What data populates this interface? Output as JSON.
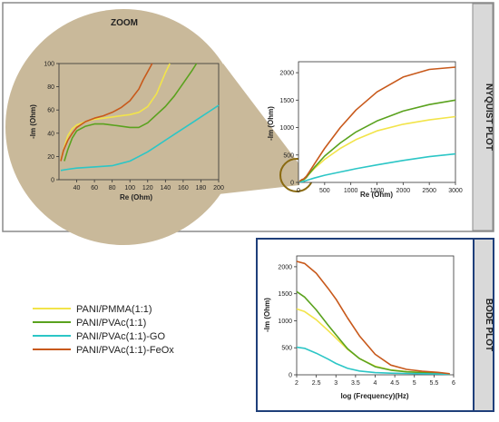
{
  "colors": {
    "yellow": "#f2e44a",
    "green": "#5aa21e",
    "cyan": "#2cc6c6",
    "orange": "#c8591b",
    "zoom_fill": "#c9b99a",
    "panel_border_top": "#8a8a8a",
    "panel_border_bottom": "#1f3f7a",
    "side_tab": "#d9d9d9"
  },
  "legend": {
    "items": [
      {
        "label": "PANI/PMMA(1:1)",
        "color": "#f2e44a"
      },
      {
        "label": "PANI/PVAc(1:1)",
        "color": "#5aa21e"
      },
      {
        "label": "PANI/PVAc(1:1)-GO",
        "color": "#2cc6c6"
      },
      {
        "label": "PANI/PVAc(1:1)-FeOx",
        "color": "#c8591b"
      }
    ]
  },
  "chart_data": [
    {
      "id": "nyquist",
      "type": "line",
      "side_label": "NYQUIST PLOT",
      "xlabel": "Re (Ohm)",
      "ylabel": "-Im (Ohm)",
      "xlim": [
        0,
        3000
      ],
      "ylim": [
        0,
        2200
      ],
      "xticks": [
        0,
        500,
        1000,
        1500,
        2000,
        2500,
        3000
      ],
      "yticks": [
        0,
        500,
        1000,
        1500,
        2000
      ],
      "series": [
        {
          "color": "#f2e44a",
          "x": [
            20,
            60,
            100,
            150,
            200,
            300,
            500,
            800,
            1100,
            1500,
            2000,
            2500,
            3000
          ],
          "y": [
            20,
            45,
            60,
            100,
            150,
            250,
            420,
            620,
            780,
            940,
            1060,
            1140,
            1200
          ]
        },
        {
          "color": "#5aa21e",
          "x": [
            20,
            60,
            100,
            150,
            200,
            300,
            500,
            800,
            1100,
            1500,
            2000,
            2500,
            3000
          ],
          "y": [
            15,
            40,
            50,
            90,
            150,
            270,
            480,
            720,
            920,
            1120,
            1300,
            1420,
            1500
          ]
        },
        {
          "color": "#2cc6c6",
          "x": [
            20,
            60,
            100,
            150,
            200,
            300,
            500,
            800,
            1100,
            1500,
            2000,
            2500,
            3000
          ],
          "y": [
            10,
            12,
            18,
            35,
            50,
            80,
            130,
            190,
            250,
            320,
            400,
            470,
            520
          ]
        },
        {
          "color": "#c8591b",
          "x": [
            20,
            60,
            100,
            150,
            200,
            300,
            500,
            800,
            1100,
            1500,
            2000,
            2500,
            3000
          ],
          "y": [
            20,
            50,
            65,
            110,
            180,
            330,
            620,
            1000,
            1320,
            1650,
            1920,
            2060,
            2100
          ]
        }
      ]
    },
    {
      "id": "zoom",
      "type": "line",
      "title": "ZOOM",
      "xlabel": "Re (Ohm)",
      "ylabel": "-Im (Ohm)",
      "xlim": [
        20,
        200
      ],
      "ylim": [
        0,
        100
      ],
      "xticks": [
        40,
        60,
        80,
        100,
        120,
        140,
        160,
        180,
        200
      ],
      "yticks": [
        0,
        20,
        40,
        60,
        80,
        100
      ],
      "series": [
        {
          "color": "#f2e44a",
          "x": [
            22,
            26,
            30,
            35,
            40,
            50,
            60,
            70,
            80,
            90,
            100,
            110,
            120,
            130,
            135,
            140,
            145
          ],
          "y": [
            17,
            28,
            38,
            44,
            47,
            50,
            52,
            53,
            54,
            55,
            56,
            58,
            63,
            74,
            83,
            92,
            100
          ]
        },
        {
          "color": "#5aa21e",
          "x": [
            26,
            30,
            35,
            40,
            50,
            60,
            70,
            80,
            90,
            100,
            110,
            120,
            130,
            140,
            150,
            160,
            170,
            175
          ],
          "y": [
            16,
            26,
            36,
            42,
            46,
            48,
            48,
            47,
            46,
            45,
            45,
            49,
            56,
            63,
            72,
            83,
            94,
            100
          ]
        },
        {
          "color": "#2cc6c6",
          "x": [
            22,
            30,
            40,
            60,
            80,
            100,
            110,
            120,
            130,
            140,
            150,
            160,
            170,
            180,
            190,
            200
          ],
          "y": [
            8,
            9,
            10,
            11,
            12,
            16,
            20,
            24,
            29,
            34,
            39,
            44,
            49,
            54,
            59,
            64
          ]
        },
        {
          "color": "#c8591b",
          "x": [
            22,
            25,
            30,
            35,
            40,
            50,
            60,
            70,
            80,
            90,
            100,
            110,
            115,
            120,
            125
          ],
          "y": [
            16,
            25,
            34,
            40,
            45,
            50,
            53,
            55,
            58,
            62,
            68,
            78,
            86,
            93,
            100
          ]
        }
      ]
    },
    {
      "id": "bode",
      "type": "line",
      "side_label": "BODE PLOT",
      "xlabel": "log (Frequency)(Hz)",
      "ylabel": "-Im (Ohm)",
      "xlim": [
        2,
        6
      ],
      "ylim": [
        0,
        2200
      ],
      "xticks": [
        "2",
        "2.5",
        "3",
        "3.5",
        "4",
        "4.5",
        "5",
        "5.5",
        "6"
      ],
      "yticks": [
        0,
        500,
        1000,
        1500,
        2000
      ],
      "series": [
        {
          "color": "#f2e44a",
          "x": [
            2,
            2.2,
            2.5,
            2.8,
            3,
            3.3,
            3.6,
            4,
            4.4,
            4.8,
            5.2,
            5.6,
            5.9
          ],
          "y": [
            1220,
            1170,
            1020,
            820,
            680,
            470,
            300,
            160,
            90,
            60,
            45,
            30,
            15
          ]
        },
        {
          "color": "#5aa21e",
          "x": [
            2,
            2.2,
            2.5,
            2.8,
            3,
            3.3,
            3.6,
            4,
            4.4,
            4.8,
            5.2,
            5.6,
            5.9
          ],
          "y": [
            1540,
            1440,
            1200,
            920,
            740,
            480,
            300,
            150,
            85,
            55,
            40,
            28,
            15
          ]
        },
        {
          "color": "#2cc6c6",
          "x": [
            2,
            2.2,
            2.5,
            2.8,
            3,
            3.3,
            3.6,
            4,
            4.4,
            4.8,
            5.2,
            5.6,
            5.9
          ],
          "y": [
            510,
            490,
            400,
            290,
            210,
            120,
            70,
            40,
            30,
            25,
            20,
            15,
            8
          ]
        },
        {
          "color": "#c8591b",
          "x": [
            2,
            2.2,
            2.5,
            2.8,
            3,
            3.3,
            3.6,
            4,
            4.4,
            4.8,
            5.2,
            5.6,
            5.9
          ],
          "y": [
            2100,
            2060,
            1880,
            1600,
            1400,
            1050,
            720,
            380,
            180,
            100,
            65,
            45,
            20
          ]
        }
      ]
    }
  ]
}
